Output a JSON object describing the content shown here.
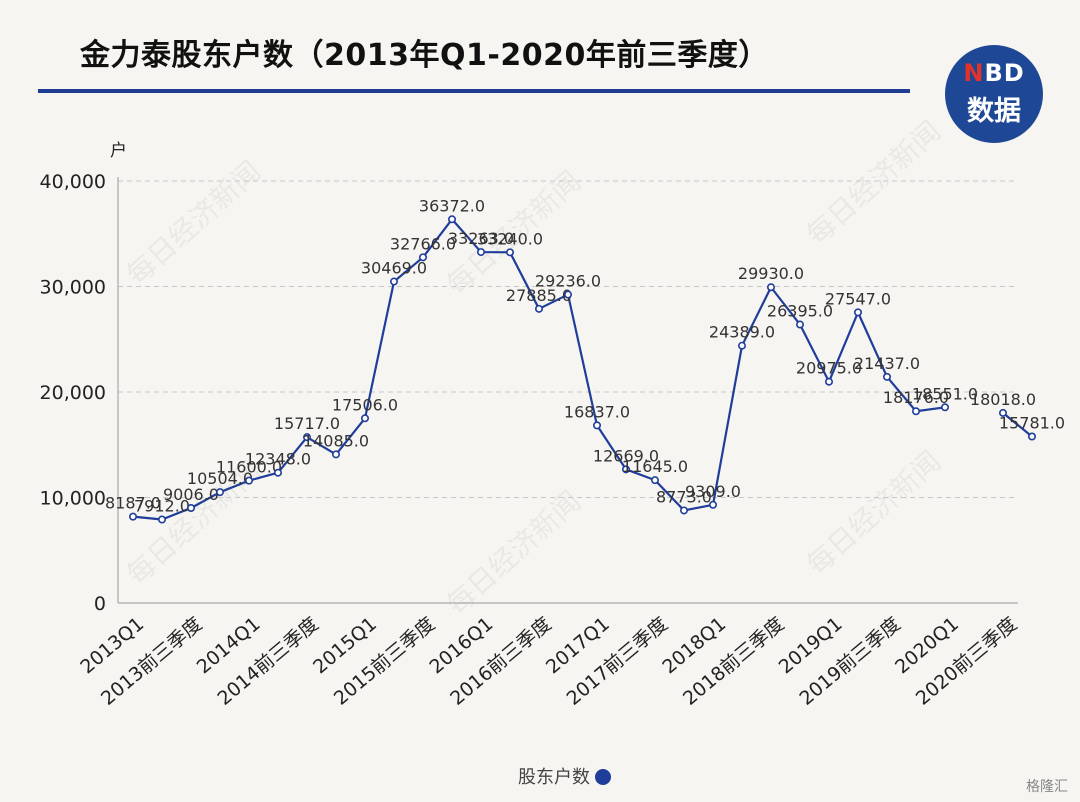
{
  "title": "金力泰股东户数（2013年Q1-2020年前三季度）",
  "logo": {
    "top_n": "N",
    "top_rest": "BD",
    "bottom": "数据"
  },
  "watermark": "每日经济新闻",
  "footer": "格隆汇",
  "chart_data": {
    "type": "line",
    "title": "金力泰股东户数（2013年Q1-2020年前三季度）",
    "ylabel": "户",
    "ylim": [
      0,
      40000
    ],
    "yticks": [
      0,
      10000,
      20000,
      30000,
      40000
    ],
    "ytick_labels": [
      "0",
      "10,000",
      "20,000",
      "30,000",
      "40,000"
    ],
    "grid": true,
    "legend": "bottom",
    "xtick_labels": [
      "2013Q1",
      "2013前三季度",
      "2014Q1",
      "2014前三季度",
      "2015Q1",
      "2015前三季度",
      "2016Q1",
      "2016前三季度",
      "2017Q1",
      "2017前三季度",
      "2018Q1",
      "2018前三季度",
      "2019Q1",
      "2019前三季度",
      "2020Q1",
      "2020前三季度"
    ],
    "series": [
      {
        "name": "股东户数",
        "color": "#1f3d9a",
        "values": [
          8187.0,
          7912.0,
          9006.0,
          10504.0,
          11600.0,
          12348.0,
          15717.0,
          14085.0,
          17506.0,
          30469.0,
          32766.0,
          36372.0,
          33263.0,
          33240.0,
          27885.0,
          29236.0,
          16837.0,
          12669.0,
          11645.0,
          8773.0,
          9309.0,
          24389.0,
          29930.0,
          26395.0,
          20975.0,
          27547.0,
          21437.0,
          18176.0,
          18551.0,
          null,
          18018.0,
          15781.0
        ],
        "labels": [
          "8187.0",
          "7912.0",
          "9006.0",
          "10504.0",
          "11600.0",
          "12348.0",
          "15717.0",
          "14085.0",
          "17506.0",
          "30469.0",
          "32766.0",
          "36372.0",
          "33263.0",
          "33240.0",
          "27885.0",
          "29236.0",
          "16837.0",
          "12669.0",
          "11645.0",
          "8773.0",
          "9309.0",
          "24389.0",
          "29930.0",
          "26395.0",
          "20975.0",
          "27547.0",
          "21437.0",
          "18176.0",
          "18551.0",
          "",
          "18018.0",
          "15781.0"
        ]
      }
    ]
  }
}
